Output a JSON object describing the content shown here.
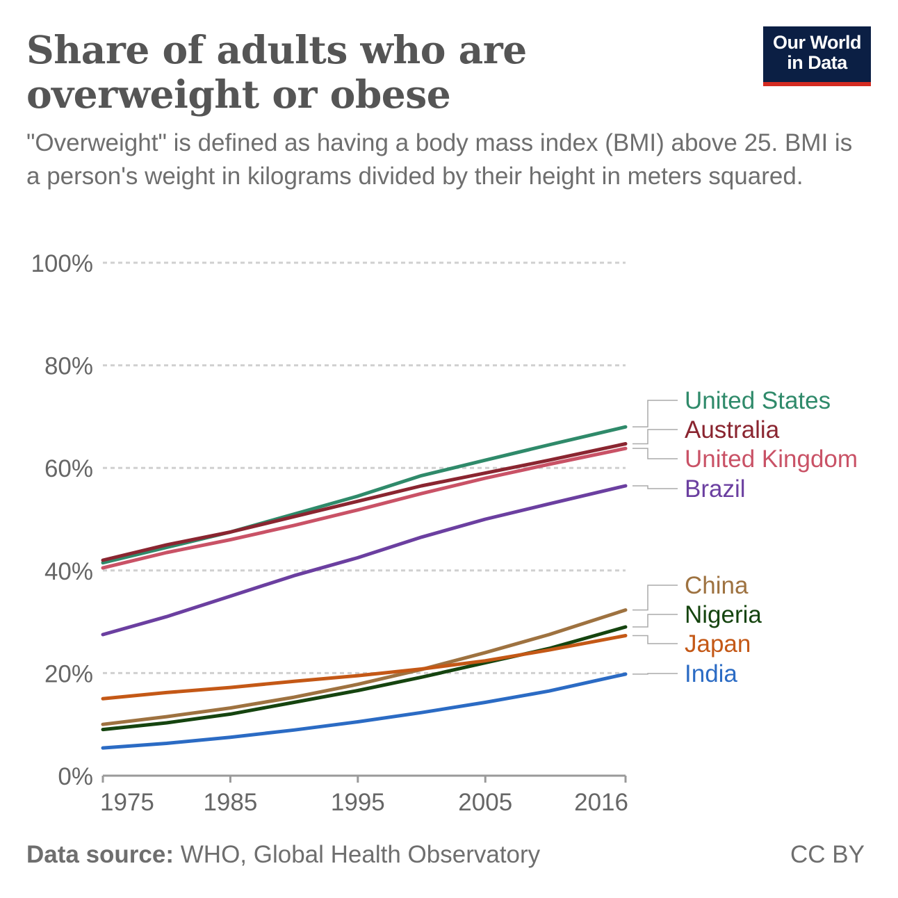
{
  "title": "Share of adults who are overweight or obese",
  "subtitle": "\"Overweight\" is defined as having a body mass index (BMI) above 25. BMI is a person's weight in kilograms divided by their height in meters squared.",
  "logo": {
    "line1": "Our World",
    "line2": "in Data",
    "bar_color": "#d42b21",
    "bg_color": "#0b1f44"
  },
  "footer": {
    "source_label": "Data source:",
    "source_text": "WHO, Global Health Observatory",
    "license": "CC BY"
  },
  "chart_data": {
    "type": "line",
    "title": "Share of adults who are overweight or obese",
    "xlabel": "",
    "ylabel": "",
    "xlim": [
      1975,
      2016
    ],
    "ylim": [
      0,
      100
    ],
    "x_ticks": [
      "1975",
      "1985",
      "1995",
      "2005",
      "2016"
    ],
    "y_ticks": [
      "0%",
      "20%",
      "40%",
      "60%",
      "80%",
      "100%"
    ],
    "grid": "horizontal dashed",
    "legend": "labels at line ends (right)",
    "x": [
      1975,
      1980,
      1985,
      1990,
      1995,
      2000,
      2005,
      2010,
      2016
    ],
    "series": [
      {
        "name": "United States",
        "color": "#2f8a6a",
        "values": [
          41.5,
          44.5,
          47.5,
          51,
          54.5,
          58.5,
          61.5,
          64.5,
          68
        ]
      },
      {
        "name": "Australia",
        "color": "#8a2530",
        "values": [
          42,
          45,
          47.5,
          50.5,
          53.5,
          56.5,
          59,
          61.5,
          64.7
        ]
      },
      {
        "name": "United Kingdom",
        "color": "#c95266",
        "values": [
          40.5,
          43.5,
          46,
          48.8,
          51.8,
          55,
          58,
          60.7,
          63.8
        ]
      },
      {
        "name": "Brazil",
        "color": "#6b3fa0",
        "values": [
          27.5,
          31,
          35,
          39,
          42.5,
          46.5,
          50,
          53,
          56.5
        ]
      },
      {
        "name": "China",
        "color": "#9e7240",
        "values": [
          10,
          11.5,
          13.2,
          15.3,
          17.8,
          20.7,
          24,
          27.5,
          32.3
        ]
      },
      {
        "name": "Nigeria",
        "color": "#15440f",
        "values": [
          9,
          10.3,
          12,
          14.3,
          16.6,
          19.2,
          22,
          24.8,
          29
        ]
      },
      {
        "name": "Japan",
        "color": "#c45816",
        "values": [
          15,
          16.2,
          17.2,
          18.4,
          19.5,
          20.8,
          22.4,
          24.5,
          27.3
        ]
      },
      {
        "name": "India",
        "color": "#2b6bc4",
        "values": [
          5.4,
          6.3,
          7.5,
          8.9,
          10.5,
          12.3,
          14.3,
          16.5,
          19.8
        ]
      }
    ]
  }
}
